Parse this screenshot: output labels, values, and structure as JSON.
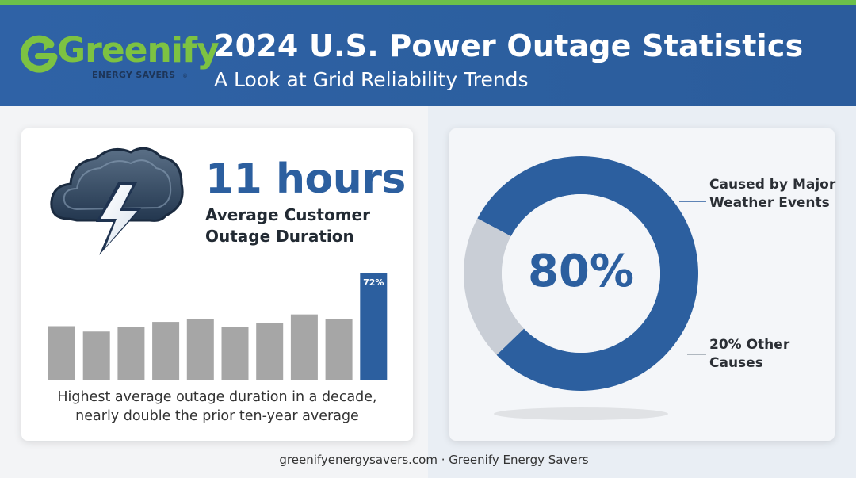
{
  "header": {
    "title": "2024 U.S. Power Outage Statistics",
    "subtitle": "A Look at Grid Reliability Trends"
  },
  "logo": {
    "name": "Greenify",
    "tagline": "ENERGY SAVERS",
    "registered": "®"
  },
  "left_card": {
    "stat_number": "11 hours",
    "stat_label": "Average Customer Outage Duration",
    "caption_line1": "Highest average outage duration in a decade,",
    "caption_line2": "nearly double the prior ten-year average"
  },
  "right_card": {
    "center_value": "80%",
    "label_major": "Caused by Major Weather Events",
    "label_other": "20% Other Causes"
  },
  "footer": {
    "text": "greenifyenergysavers.com · Greenify Energy Savers"
  },
  "colors": {
    "header_blue": "#2c5f9f",
    "accent_green": "#7dc242",
    "bar_gray": "#a6a6a6",
    "highlight_blue": "#2c5f9f",
    "donut_gray": "#c9ced6"
  },
  "icons": [
    "cloud-lightning-icon",
    "greenify-g-icon"
  ],
  "chart_data": [
    {
      "type": "bar",
      "title": "",
      "categories": [
        "",
        "",
        "",
        "",
        "",
        "",
        "",
        "",
        "",
        ""
      ],
      "values": [
        0.5,
        0.45,
        0.49,
        0.54,
        0.57,
        0.49,
        0.53,
        0.61,
        0.57,
        1.0
      ],
      "data_labels": [
        "",
        "",
        "",
        "",
        "",
        "",
        "",
        "",
        "",
        "72%"
      ],
      "highlight_index": 9,
      "ylim": [
        0,
        1
      ],
      "grid": false,
      "axes_visible": false
    },
    {
      "type": "pie",
      "donut": true,
      "slices": [
        {
          "label": "Caused by Major Weather Events",
          "value": 80
        },
        {
          "label": "20% Other Causes",
          "value": 20
        }
      ],
      "center_label": "80%"
    }
  ]
}
